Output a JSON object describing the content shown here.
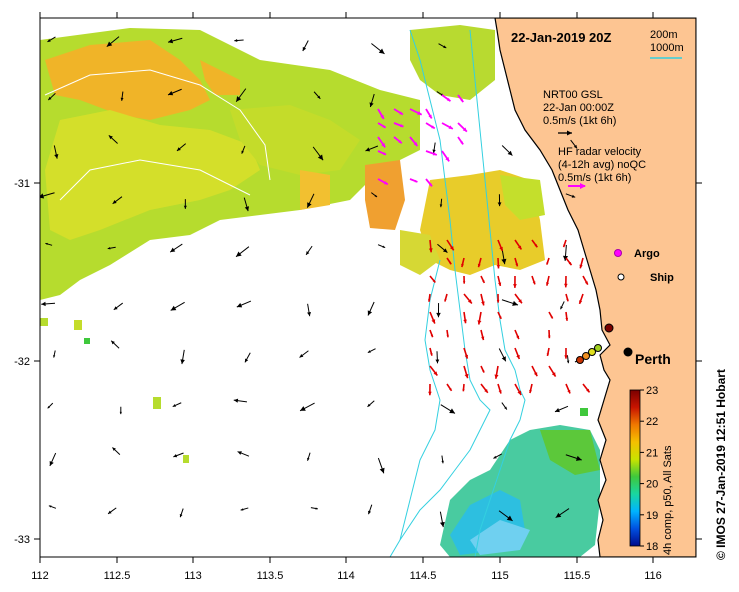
{
  "map": {
    "date_label": "22-Jan-2019 20Z",
    "depth_legend": [
      "200m",
      "1000m"
    ],
    "vector_legend": {
      "model_lines": [
        "NRT00 GSL",
        "22-Jan 00:00Z",
        "0.5m/s (1kt 6h)"
      ],
      "radar_lines": [
        "HF radar velocity",
        "(4-12h avg) noQC",
        "0.5m/s (1kt 6h)"
      ]
    },
    "markers": {
      "argo": "Argo",
      "ship": "Ship"
    },
    "city": "Perth",
    "colorbar": {
      "label": "4h comp, p50, All Sats",
      "ticks": [
        "18",
        "19",
        "20",
        "21",
        "22",
        "23"
      ],
      "colors": [
        "#000a8c",
        "#0050e0",
        "#00b4ff",
        "#19d7a0",
        "#3fc83c",
        "#c9e300",
        "#f5c000",
        "#f07800",
        "#c81400",
        "#7a0000"
      ]
    },
    "x_ticks": [
      "112",
      "112.5",
      "113",
      "113.5",
      "114",
      "114.5",
      "115",
      "115.5",
      "116"
    ],
    "y_ticks": [
      "-31",
      "-32",
      "-33"
    ],
    "credit": "© IMOS 27-Jan-2019 12:51 Hobart",
    "colors": {
      "land": "#fdc592",
      "isobath": "#33d0e0",
      "radar_arrow": "#e00000",
      "model_arrow": "#000000",
      "argo_arrow": "#ff00ff"
    }
  }
}
